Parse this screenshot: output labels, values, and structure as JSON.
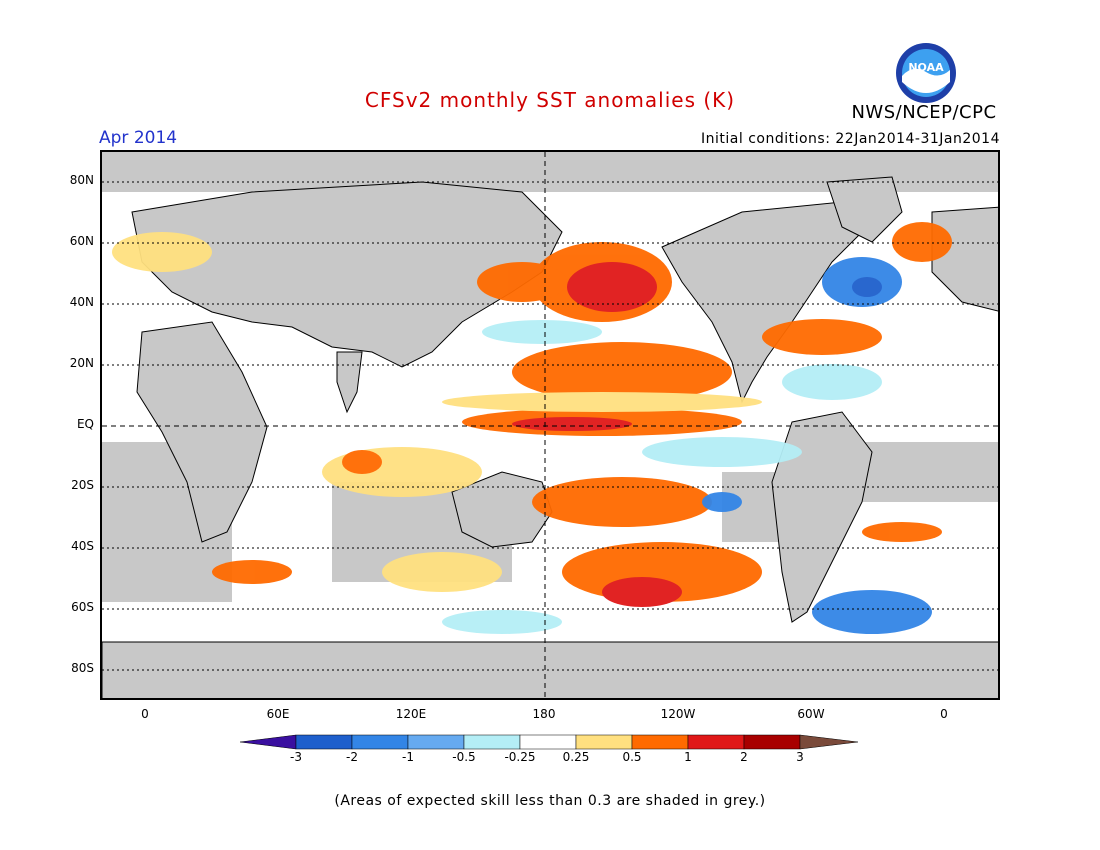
{
  "header": {
    "title": "CFSv2 monthly SST anomalies (K)",
    "month": "Apr 2014",
    "initial_conditions": "Initial conditions: 22Jan2014-31Jan2014",
    "agency": "NWS/NCEP/CPC",
    "logo_text": "NOAA"
  },
  "axes": {
    "y_labels": [
      {
        "label": "80N"
      },
      {
        "label": "60N"
      },
      {
        "label": "40N"
      },
      {
        "label": "20N"
      },
      {
        "label": "EQ"
      },
      {
        "label": "20S"
      },
      {
        "label": "40S"
      },
      {
        "label": "60S"
      },
      {
        "label": "80S"
      }
    ],
    "x_labels": [
      {
        "label": "0"
      },
      {
        "label": "60E"
      },
      {
        "label": "120E"
      },
      {
        "label": "180"
      },
      {
        "label": "120W"
      },
      {
        "label": "60W"
      },
      {
        "label": "0"
      }
    ]
  },
  "colorbar": {
    "labels": [
      "-3",
      "-2",
      "-1",
      "-0.5",
      "-0.25",
      "0.25",
      "0.5",
      "1",
      "2",
      "3"
    ],
    "colors": [
      "#3a0fa0",
      "#1e5fcc",
      "#3385e6",
      "#66aaf0",
      "#b4eef6",
      "#ffffff",
      "#ffe080",
      "#ff6a00",
      "#e01818",
      "#a80000",
      "#7a4a3a"
    ]
  },
  "note": "(Areas of expected skill less than 0.3 are shaded in grey.)",
  "colors": {
    "title": "#d00000",
    "month": "#2233cc",
    "land": "#c8c8c8",
    "low_skill": "#c8c8c8"
  }
}
